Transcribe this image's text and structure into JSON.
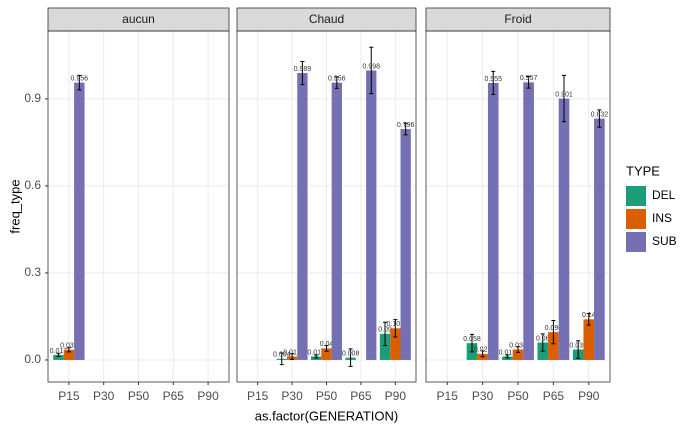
{
  "legend_title": "TYPE",
  "chart_data": [
    {
      "type": "bar",
      "title": "aucun",
      "ylabel": "freq_type",
      "categories": [
        "P15",
        "P30",
        "P50",
        "P65",
        "P90"
      ],
      "series": [
        {
          "name": "DEL",
          "color": "#1b9e77",
          "values": [
            0.017,
            null,
            null,
            null,
            null
          ],
          "errors": [
            0.005,
            null,
            null,
            null,
            null
          ]
        },
        {
          "name": "INS",
          "color": "#d95f02",
          "values": [
            0.035,
            null,
            null,
            null,
            null
          ],
          "errors": [
            0.007,
            null,
            null,
            null,
            null
          ]
        },
        {
          "name": "SUB",
          "color": "#7570b3",
          "values": [
            0.956,
            null,
            null,
            null,
            null
          ],
          "errors": [
            0.025,
            null,
            null,
            null,
            null
          ]
        }
      ],
      "ylim": [
        -0.076,
        1.134
      ],
      "yticks": [
        {
          "value": 0,
          "label": "0.0"
        },
        0.3,
        0.6,
        0.9
      ],
      "grid": true
    },
    {
      "type": "bar",
      "title": "Chaud",
      "xlabel": "as.factor(GENERATION)",
      "categories": [
        "P15",
        "P30",
        "P50",
        "P65",
        "P90"
      ],
      "series": [
        {
          "name": "DEL",
          "color": "#1b9e77",
          "values": [
            null,
            0.004,
            0.012,
            0.008,
            0.09
          ],
          "errors": [
            null,
            0.02,
            0.005,
            0.03,
            0.04
          ]
        },
        {
          "name": "INS",
          "color": "#d95f02",
          "values": [
            null,
            0.012,
            0.04,
            null,
            0.109
          ],
          "errors": [
            null,
            0.01,
            0.01,
            null,
            0.03
          ]
        },
        {
          "name": "SUB",
          "color": "#7570b3",
          "values": [
            null,
            0.989,
            0.956,
            0.998,
            0.796
          ],
          "errors": [
            null,
            0.04,
            0.02,
            0.08,
            0.02
          ]
        }
      ],
      "ylim": [
        -0.076,
        1.134
      ],
      "grid": true
    },
    {
      "type": "bar",
      "title": "Froid",
      "categories": [
        "P15",
        "P30",
        "P50",
        "P65",
        "P90"
      ],
      "series": [
        {
          "name": "DEL",
          "color": "#1b9e77",
          "values": [
            null,
            0.058,
            0.012,
            0.06,
            0.036
          ],
          "errors": [
            null,
            0.03,
            0.005,
            0.03,
            0.03
          ]
        },
        {
          "name": "INS",
          "color": "#d95f02",
          "values": [
            null,
            0.021,
            0.036,
            0.096,
            0.14
          ],
          "errors": [
            null,
            0.01,
            0.01,
            0.04,
            0.02
          ]
        },
        {
          "name": "SUB",
          "color": "#7570b3",
          "values": [
            null,
            0.955,
            0.957,
            0.901,
            0.832
          ],
          "errors": [
            null,
            0.04,
            0.02,
            0.08,
            0.03
          ]
        }
      ],
      "ylim": [
        -0.076,
        1.134
      ],
      "grid": true
    }
  ]
}
